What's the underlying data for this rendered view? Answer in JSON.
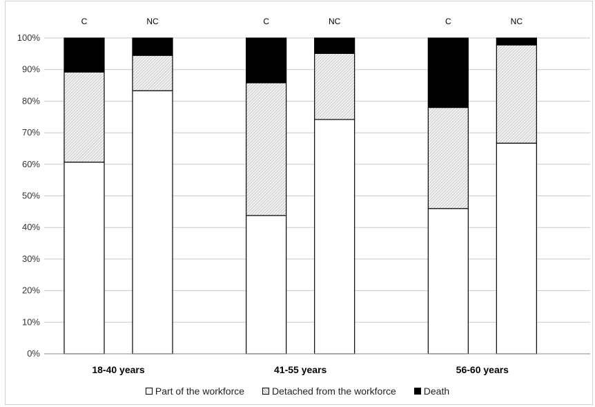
{
  "chart_data": {
    "type": "bar",
    "stacked": true,
    "percent": true,
    "groups": [
      {
        "label": "18-40 years",
        "bars": [
          {
            "label": "C",
            "values": [
              60.7,
              28.5,
              10.8
            ]
          },
          {
            "label": "NC",
            "values": [
              83.3,
              11.2,
              5.5
            ]
          }
        ]
      },
      {
        "label": "41-55 years",
        "bars": [
          {
            "label": "C",
            "values": [
              43.8,
              42.0,
              14.2
            ]
          },
          {
            "label": "NC",
            "values": [
              74.2,
              20.9,
              4.9
            ]
          }
        ]
      },
      {
        "label": "56-60 years",
        "bars": [
          {
            "label": "C",
            "values": [
              46.0,
              32.0,
              22.0
            ]
          },
          {
            "label": "NC",
            "values": [
              66.7,
              31.1,
              2.2
            ]
          }
        ]
      }
    ],
    "series": [
      {
        "name": "Part of the workforce",
        "color": "#ffffff"
      },
      {
        "name": "Detached from the workforce",
        "color": "#d9d9d9"
      },
      {
        "name": "Death",
        "color": "#000000"
      }
    ],
    "ylim": [
      0,
      100
    ],
    "yticks": [
      "0%",
      "10%",
      "20%",
      "30%",
      "40%",
      "50%",
      "60%",
      "70%",
      "80%",
      "90%",
      "100%"
    ],
    "grid": true,
    "legend_position": "bottom"
  }
}
